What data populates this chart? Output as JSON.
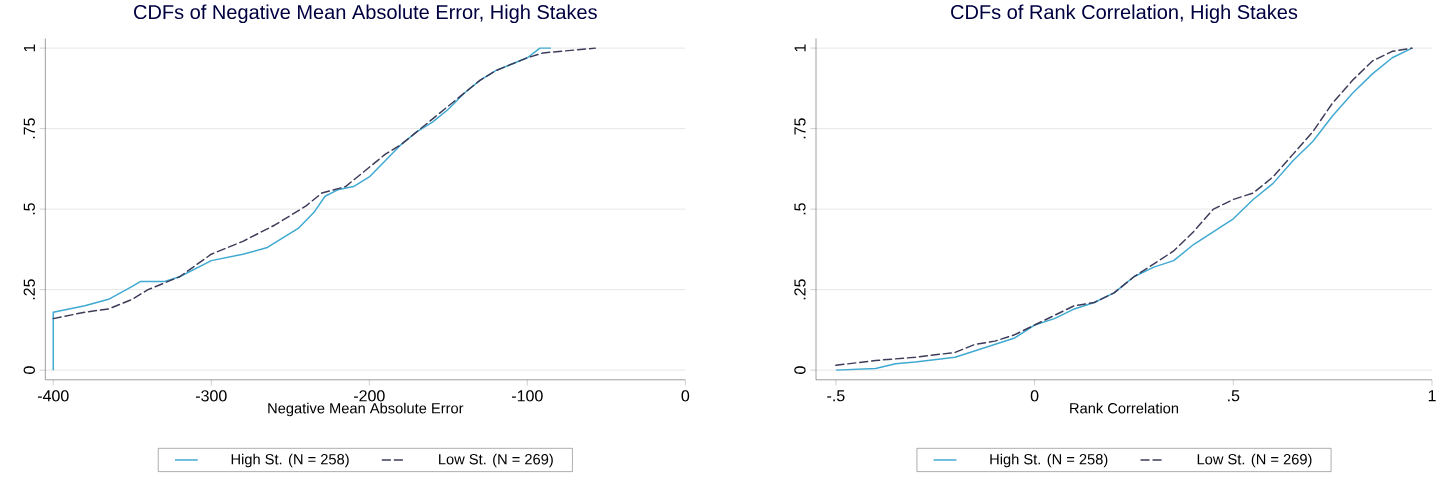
{
  "chart_data": [
    {
      "type": "line",
      "title": "CDFs of Negative Mean Absolute Error, High Stakes",
      "xlabel": "Negative Mean Absolute Error",
      "xlim": [
        -405,
        0
      ],
      "ylim": [
        -0.03,
        1.03
      ],
      "xticks": [
        -400,
        -300,
        -200,
        -100,
        0
      ],
      "yticks": [
        0,
        {
          "value": 0.25,
          "label": ".25"
        },
        {
          "value": 0.5,
          "label": ".5"
        },
        {
          "value": 0.75,
          "label": ".75"
        },
        1
      ],
      "grid": "y",
      "legend": "bottom",
      "series": [
        {
          "name": "High St. (N = 258)",
          "color": "#3fa9d1",
          "line_style": "solid",
          "x": [
            -400,
            -400,
            -380,
            -365,
            -350,
            -345,
            -330,
            -320,
            -300,
            -280,
            -265,
            -255,
            -245,
            -235,
            -228,
            -220,
            -210,
            -200,
            -190,
            -180,
            -170,
            -160,
            -150,
            -140,
            -130,
            -120,
            -110,
            -100,
            -92,
            -85
          ],
          "values": [
            0,
            0.18,
            0.2,
            0.22,
            0.26,
            0.275,
            0.275,
            0.29,
            0.34,
            0.36,
            0.38,
            0.41,
            0.44,
            0.49,
            0.54,
            0.56,
            0.57,
            0.6,
            0.65,
            0.7,
            0.74,
            0.77,
            0.81,
            0.86,
            0.9,
            0.93,
            0.95,
            0.97,
            1.0,
            1.0
          ]
        },
        {
          "name": "Low St. (N = 269)",
          "color": "#3c3c5a",
          "line_style": "dashed",
          "x": [
            -400,
            -380,
            -365,
            -350,
            -340,
            -320,
            -300,
            -280,
            -260,
            -240,
            -230,
            -215,
            -200,
            -190,
            -180,
            -170,
            -160,
            -150,
            -140,
            -130,
            -120,
            -110,
            -100,
            -90,
            -57
          ],
          "values": [
            0.16,
            0.18,
            0.19,
            0.22,
            0.25,
            0.29,
            0.36,
            0.4,
            0.45,
            0.51,
            0.55,
            0.57,
            0.63,
            0.67,
            0.7,
            0.74,
            0.78,
            0.82,
            0.86,
            0.9,
            0.93,
            0.95,
            0.97,
            0.985,
            1.0
          ]
        }
      ]
    },
    {
      "type": "line",
      "title": "CDFs of Rank Correlation, High Stakes",
      "xlabel": "Rank Correlation",
      "xlim": [
        -0.55,
        1.0
      ],
      "ylim": [
        -0.03,
        1.03
      ],
      "xticks": [
        {
          "value": -0.5,
          "label": "-.5"
        },
        0,
        {
          "value": 0.5,
          "label": ".5"
        },
        1
      ],
      "yticks": [
        0,
        {
          "value": 0.25,
          "label": ".25"
        },
        {
          "value": 0.5,
          "label": ".5"
        },
        {
          "value": 0.75,
          "label": ".75"
        },
        1
      ],
      "grid": "y",
      "legend": "bottom",
      "series": [
        {
          "name": "High St. (N = 258)",
          "color": "#3fa9d1",
          "line_style": "solid",
          "x": [
            -0.5,
            -0.4,
            -0.35,
            -0.3,
            -0.2,
            -0.15,
            -0.1,
            -0.05,
            0,
            0.05,
            0.1,
            0.15,
            0.2,
            0.25,
            0.3,
            0.35,
            0.4,
            0.45,
            0.5,
            0.55,
            0.6,
            0.65,
            0.7,
            0.75,
            0.8,
            0.85,
            0.9,
            0.95
          ],
          "values": [
            0,
            0.005,
            0.02,
            0.025,
            0.04,
            0.06,
            0.08,
            0.1,
            0.14,
            0.16,
            0.19,
            0.21,
            0.24,
            0.29,
            0.32,
            0.34,
            0.39,
            0.43,
            0.47,
            0.53,
            0.58,
            0.65,
            0.71,
            0.79,
            0.86,
            0.92,
            0.97,
            1.0
          ]
        },
        {
          "name": "Low St. (N = 269)",
          "color": "#3c3c5a",
          "line_style": "dashed",
          "x": [
            -0.5,
            -0.4,
            -0.3,
            -0.2,
            -0.15,
            -0.1,
            -0.05,
            0,
            0.1,
            0.15,
            0.2,
            0.25,
            0.3,
            0.35,
            0.4,
            0.45,
            0.5,
            0.55,
            0.6,
            0.65,
            0.7,
            0.75,
            0.8,
            0.85,
            0.9,
            0.95
          ],
          "values": [
            0.015,
            0.03,
            0.04,
            0.055,
            0.08,
            0.09,
            0.11,
            0.14,
            0.2,
            0.21,
            0.24,
            0.29,
            0.33,
            0.37,
            0.43,
            0.5,
            0.53,
            0.55,
            0.6,
            0.67,
            0.74,
            0.83,
            0.9,
            0.96,
            0.99,
            1.0
          ]
        }
      ]
    }
  ]
}
